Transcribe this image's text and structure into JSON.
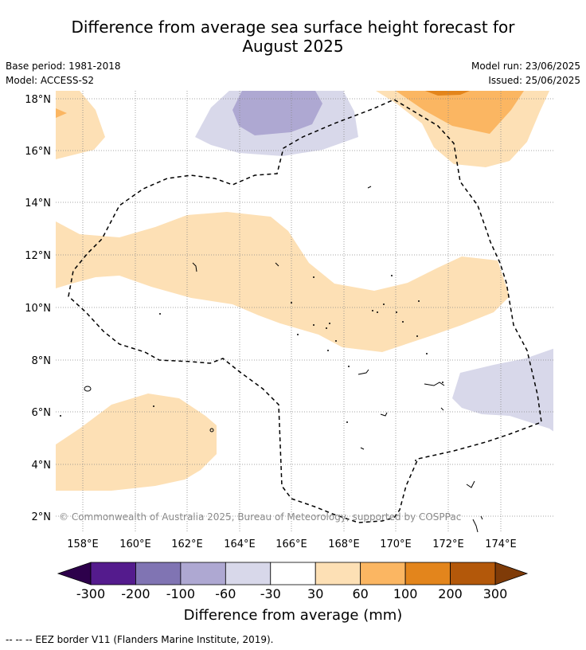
{
  "title_line1": "Difference from average sea surface height forecast for",
  "title_line2": "August 2025",
  "meta": {
    "base_period": "Base period: 1981-2018",
    "model": "Model: ACCESS-S2",
    "model_run": "Model run: 23/06/2025",
    "issued": "Issued: 25/06/2025"
  },
  "map": {
    "lat_labels": [
      "18°N",
      "16°N",
      "14°N",
      "12°N",
      "10°N",
      "8°N",
      "6°N",
      "4°N",
      "2°N"
    ],
    "lon_labels": [
      "158°E",
      "160°E",
      "162°E",
      "164°E",
      "166°E",
      "168°E",
      "170°E",
      "172°E",
      "174°E"
    ],
    "copyright": "© Commonwealth of Australia 2025, Bureau of Meteorology, supported by COSPPac",
    "gridlines": true,
    "colors": {
      "pos30_60": "#fde0b5",
      "pos60_100": "#fbb662",
      "pos100_200": "#e3851c",
      "neg60_30": "#d8d8ea",
      "neg100_60": "#aea8d2"
    }
  },
  "colorbar": {
    "labels": [
      "-300",
      "-200",
      "-100",
      "-60",
      "-30",
      "30",
      "60",
      "100",
      "200",
      "300"
    ],
    "colors": [
      "#541b8d",
      "#8074b3",
      "#aea8d2",
      "#d8d8ea",
      "#ffffff",
      "#fde0b5",
      "#fbb662",
      "#e3851c",
      "#b3580a"
    ],
    "extend_low_color": "#2d004b",
    "extend_high_color": "#7f3b08",
    "title": "Difference from average (mm)"
  },
  "footer": "--  --  -- EEZ border V11 (Flanders Marine Institute, 2019)."
}
